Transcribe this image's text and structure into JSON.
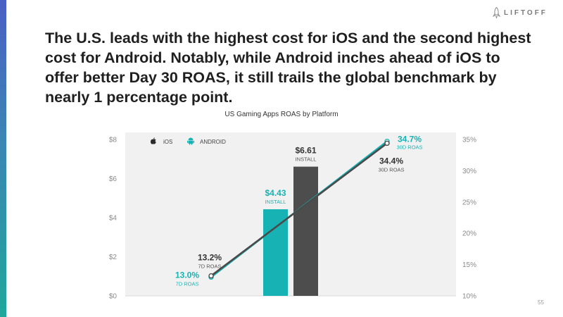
{
  "brand": {
    "logo_text": "LIFTOFF"
  },
  "headline": "The U.S. leads with the highest cost for iOS and the second highest cost for Android. Notably, while Android inches ahead of iOS to offer better Day 30 ROAS, it still trails the global benchmark by nearly 1 percentage point.",
  "page_number": "55",
  "colors": {
    "accent": "#1aa6a6",
    "android": "#17b2b4",
    "ios": "#4a4a4a",
    "ios_bar": "#4d4d4d",
    "axis_text": "#8a8a8a",
    "plot_bg": "#f1f1f1"
  },
  "chart_data": {
    "type": "bar+line",
    "title": "US Gaming Apps ROAS by Platform",
    "legend": {
      "position": "top-left",
      "items": [
        {
          "name": "iOS",
          "icon": "apple-icon"
        },
        {
          "name": "ANDROID",
          "icon": "android-icon"
        }
      ]
    },
    "y_left": {
      "range": [
        0,
        8
      ],
      "ticks": [
        0,
        2,
        4,
        6,
        8
      ],
      "tick_labels": [
        "$0",
        "$2",
        "$4",
        "$6",
        "$8"
      ]
    },
    "y_right": {
      "range": [
        10,
        35
      ],
      "ticks": [
        10,
        15,
        20,
        25,
        30,
        35
      ],
      "tick_labels": [
        "10%",
        "15%",
        "20%",
        "25%",
        "30%",
        "35%"
      ]
    },
    "bars": [
      {
        "series": "ANDROID",
        "metric": "INSTALL",
        "value": 4.43,
        "label": "$4.43",
        "sublabel": "INSTALL"
      },
      {
        "series": "iOS",
        "metric": "INSTALL",
        "value": 6.61,
        "label": "$6.61",
        "sublabel": "INSTALL"
      }
    ],
    "lines": [
      {
        "series": "iOS",
        "points": [
          {
            "x": "7D ROAS",
            "y": 13.2,
            "label": "13.2%",
            "sublabel": "7D ROAS"
          },
          {
            "x": "30D ROAS",
            "y": 34.4,
            "label": "34.4%",
            "sublabel": "30D ROAS"
          }
        ]
      },
      {
        "series": "ANDROID",
        "points": [
          {
            "x": "7D ROAS",
            "y": 13.0,
            "label": "13.0%",
            "sublabel": "7D ROAS"
          },
          {
            "x": "30D ROAS",
            "y": 34.7,
            "label": "34.7%",
            "sublabel": "30D ROAS"
          }
        ]
      }
    ],
    "grid": false
  }
}
